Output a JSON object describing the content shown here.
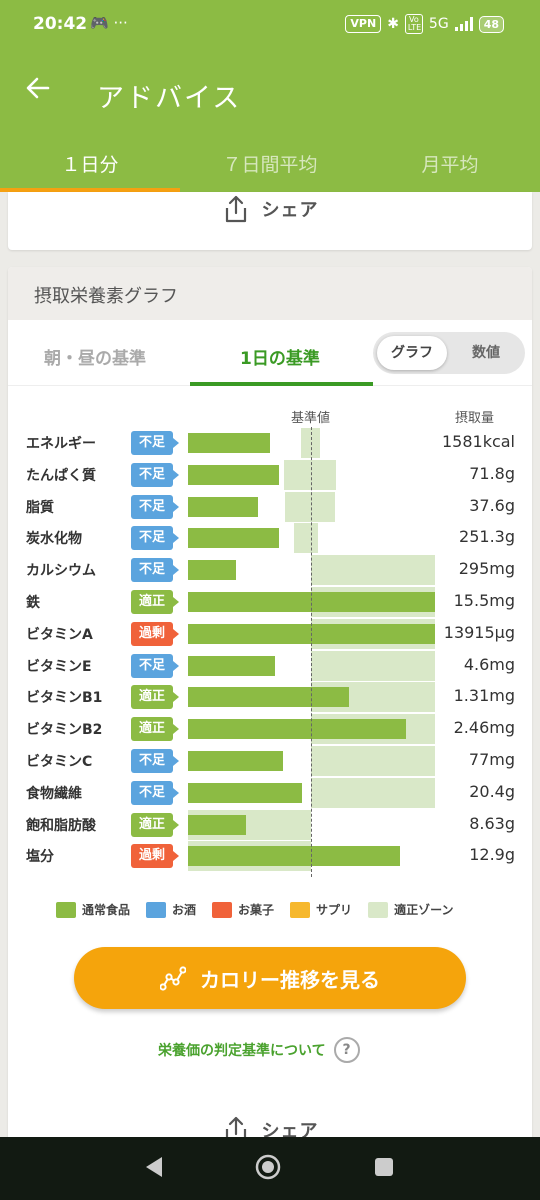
{
  "status_bar": {
    "time": "20:42",
    "extra": "···",
    "vpn": "VPN",
    "volte": "Vo LTE",
    "network": "5G",
    "battery": "48"
  },
  "appbar": {
    "title": "アドバイス",
    "back_icon": "arrow-left-icon"
  },
  "tabs": [
    {
      "label": "１日分",
      "active": true
    },
    {
      "label": "７日間平均",
      "active": false
    },
    {
      "label": "月平均",
      "active": false
    }
  ],
  "share_label": "シェア",
  "graph_card": {
    "title": "摂取栄養素グラフ",
    "subtabs": [
      "朝・昼の基準",
      "1日の基準"
    ],
    "toggle": [
      "グラフ",
      "数値"
    ],
    "col_reference": "基準値",
    "col_intake": "摂取量"
  },
  "chart_data": {
    "type": "bar",
    "categories": [
      "エネルギー",
      "たんぱく質",
      "脂質",
      "炭水化物",
      "カルシウム",
      "鉄",
      "ビタミンA",
      "ビタミンE",
      "ビタミンB1",
      "ビタミンB2",
      "ビタミンC",
      "食物繊維",
      "飽和脂肪酸",
      "塩分"
    ],
    "status": [
      "不足",
      "不足",
      "不足",
      "不足",
      "不足",
      "適正",
      "過剰",
      "不足",
      "適正",
      "適正",
      "不足",
      "不足",
      "適正",
      "過剰"
    ],
    "intake_labels": [
      "1581kcal",
      "71.8g",
      "37.6g",
      "251.3g",
      "295mg",
      "15.5mg",
      "13915μg",
      "4.6mg",
      "1.31mg",
      "2.46mg",
      "77mg",
      "20.4g",
      "8.63g",
      "12.9g"
    ],
    "values_pct_of_reference": [
      67,
      74,
      57,
      74,
      39,
      200,
      200,
      71,
      131,
      177,
      77,
      93,
      47,
      172
    ],
    "zone_pct_of_reference": [
      [
        92,
        107
      ],
      [
        78,
        120
      ],
      [
        79,
        119
      ],
      [
        86,
        106
      ],
      [
        100,
        200
      ],
      [
        100,
        200
      ],
      [
        100,
        200
      ],
      [
        100,
        200
      ],
      [
        100,
        200
      ],
      [
        100,
        200
      ],
      [
        100,
        200
      ],
      [
        100,
        200
      ],
      [
        0,
        100
      ],
      [
        0,
        100
      ]
    ],
    "status_colors": {
      "不足": "#5ba4de",
      "適正": "#8cbb44",
      "過剰": "#f0623a"
    }
  },
  "legend": [
    {
      "label": "通常食品",
      "color": "#8cbb44"
    },
    {
      "label": "お酒",
      "color": "#5ba4de"
    },
    {
      "label": "お菓子",
      "color": "#f0623a"
    },
    {
      "label": "サプリ",
      "color": "#f6b82e"
    },
    {
      "label": "適正ゾーン",
      "color": "#d9e8c8"
    }
  ],
  "cta_label": "カロリー推移を見る",
  "criteria_link": "栄養価の判定基準について",
  "colors": {
    "brand": "#8cbb44",
    "accent": "#f5a40c",
    "active_green": "#3a9a24"
  }
}
